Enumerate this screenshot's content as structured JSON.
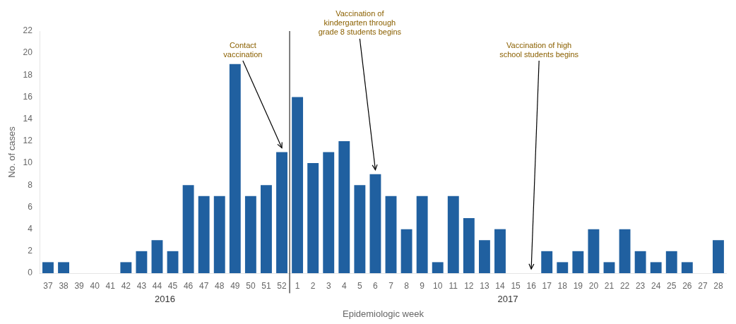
{
  "chart_data": {
    "type": "bar",
    "xlabel": "Epidemiologic week",
    "ylabel": "No. of cases",
    "categories": [
      "37",
      "38",
      "39",
      "40",
      "41",
      "42",
      "43",
      "44",
      "45",
      "46",
      "47",
      "48",
      "49",
      "50",
      "51",
      "52",
      "1",
      "2",
      "3",
      "4",
      "5",
      "6",
      "7",
      "8",
      "9",
      "10",
      "11",
      "12",
      "13",
      "14",
      "15",
      "16",
      "17",
      "18",
      "19",
      "20",
      "21",
      "22",
      "23",
      "24",
      "25",
      "26",
      "27",
      "28"
    ],
    "values": [
      1,
      1,
      0,
      0,
      0,
      1,
      2,
      3,
      2,
      8,
      7,
      7,
      19,
      7,
      8,
      11,
      16,
      10,
      11,
      12,
      8,
      9,
      7,
      4,
      7,
      1,
      7,
      5,
      3,
      4,
      0,
      0,
      2,
      1,
      2,
      4,
      1,
      4,
      2,
      1,
      2,
      1,
      0,
      3
    ],
    "color": "#2060a0",
    "ylim": [
      0,
      22
    ],
    "yticks": [
      0,
      2,
      4,
      6,
      8,
      10,
      12,
      14,
      16,
      18,
      20,
      22
    ],
    "grid": false,
    "group_labels": [
      {
        "text": "2016",
        "first": "37",
        "last": "52"
      },
      {
        "text": "2017",
        "first": "1",
        "last": "28"
      }
    ],
    "annotations": [
      {
        "text": "Contact\nvaccination",
        "category": "52",
        "color": "#8B6000"
      },
      {
        "text": "Vaccination of\nkindergarten through\ngrade 8 students begins",
        "category": "6",
        "color": "#8B6000"
      },
      {
        "text": "Vaccination of high\nschool students begins",
        "category": "16",
        "color": "#8B6000"
      }
    ]
  }
}
